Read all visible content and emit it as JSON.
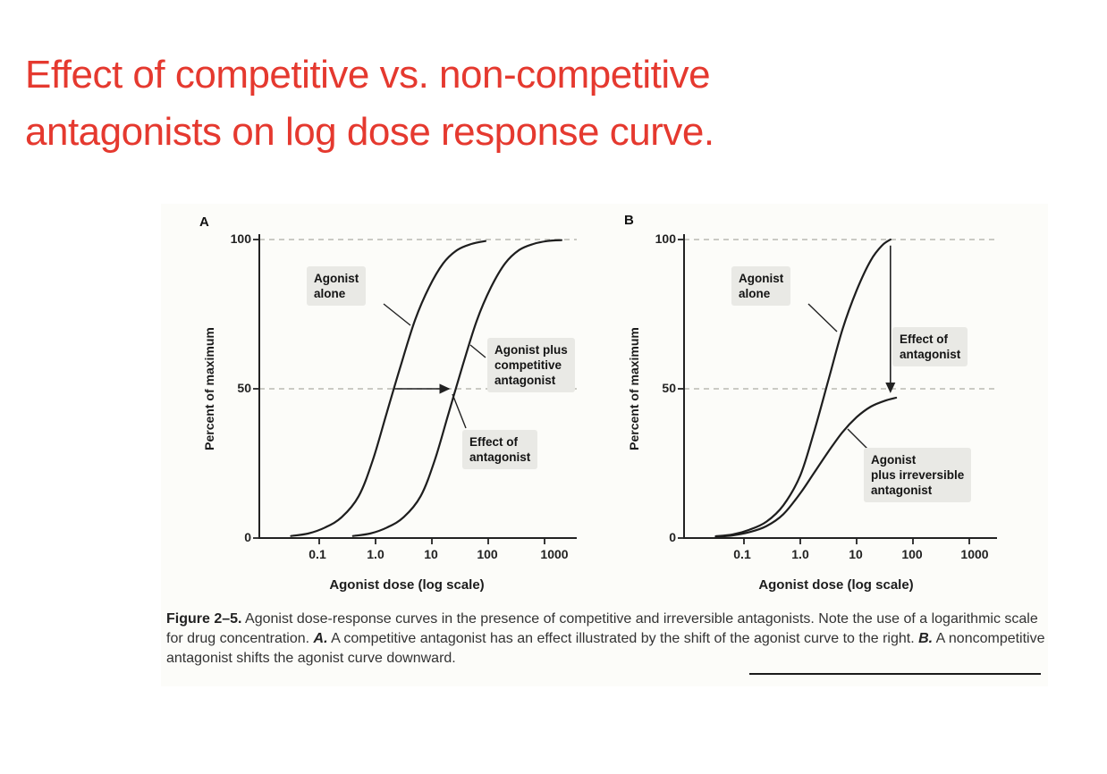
{
  "slide": {
    "title_line1": "Effect of competitive vs. non-competitive",
    "title_line2": "antagonists on log dose response curve.",
    "title_color": "#e5392f"
  },
  "figure": {
    "caption": {
      "lead": "Figure 2–5.",
      "part1": " Agonist dose-response curves in the presence of competitive and irreversible antagonists. Note the use of a logarithmic scale for drug concentration. ",
      "marker_a": "A.",
      "part2": " A competitive antagonist has an effect illustrated by the shift of the agonist curve to the right. ",
      "marker_b": "B.",
      "part3": " A noncompetitive antagonist shifts the agonist curve downward."
    }
  },
  "chart_data": [
    {
      "type": "line",
      "panel_label": "A",
      "xlabel": "Agonist dose (log scale)",
      "ylabel": "Percent of maximum",
      "x_scale": "log10",
      "x_ticks": [
        "0.1",
        "1.0",
        "10",
        "100",
        "1000"
      ],
      "y_ticks": [
        "100",
        "50",
        "0"
      ],
      "ylim": [
        0,
        100
      ],
      "gridlines_pct": [
        100,
        50
      ],
      "series": [
        {
          "name": "Agonist alone",
          "points": [
            [
              -1.5,
              0.7
            ],
            [
              -1.2,
              1.5
            ],
            [
              -0.9,
              3.5
            ],
            [
              -0.6,
              7
            ],
            [
              -0.3,
              14
            ],
            [
              -0.05,
              26
            ],
            [
              0.2,
              42
            ],
            [
              0.45,
              58
            ],
            [
              0.7,
              73
            ],
            [
              0.95,
              84
            ],
            [
              1.2,
              92
            ],
            [
              1.45,
              96.5
            ],
            [
              1.7,
              98.5
            ],
            [
              1.95,
              99.5
            ]
          ]
        },
        {
          "name": "Agonist plus competitive antagonist",
          "points": [
            [
              -0.4,
              0.7
            ],
            [
              -0.1,
              1.5
            ],
            [
              0.2,
              3.5
            ],
            [
              0.5,
              7
            ],
            [
              0.8,
              14
            ],
            [
              1.05,
              26
            ],
            [
              1.3,
              42
            ],
            [
              1.55,
              58
            ],
            [
              1.8,
              73
            ],
            [
              2.05,
              84
            ],
            [
              2.3,
              92
            ],
            [
              2.55,
              96.5
            ],
            [
              2.8,
              98.5
            ],
            [
              3.05,
              99.5
            ],
            [
              3.3,
              99.8
            ]
          ]
        }
      ],
      "annotations": {
        "agonist_alone": "Agonist\nalone",
        "plus_competitive": "Agonist plus\ncompetitive\nantagonist",
        "effect": "Effect of\nantagonist"
      },
      "arrow": {
        "orientation": "horizontal",
        "at_pct": 50,
        "from_log": 0.34,
        "to_log": 1.3,
        "meaning": "rightward shift caused by competitive antagonist"
      }
    },
    {
      "type": "line",
      "panel_label": "B",
      "xlabel": "Agonist dose (log scale)",
      "ylabel": "Percent of maximum",
      "x_scale": "log10",
      "x_ticks": [
        "0.1",
        "1.0",
        "10",
        "100",
        "1000"
      ],
      "y_ticks": [
        "100",
        "50",
        "0"
      ],
      "ylim": [
        0,
        100
      ],
      "gridlines_pct": [
        100,
        50
      ],
      "series": [
        {
          "name": "Agonist alone",
          "points": [
            [
              -1.5,
              0.6
            ],
            [
              -1.2,
              1.2
            ],
            [
              -0.9,
              2.8
            ],
            [
              -0.6,
              5.5
            ],
            [
              -0.3,
              11
            ],
            [
              0,
              21
            ],
            [
              0.25,
              36
            ],
            [
              0.5,
              53
            ],
            [
              0.75,
              70
            ],
            [
              1.0,
              83
            ],
            [
              1.25,
              93
            ],
            [
              1.45,
              98
            ],
            [
              1.6,
              100
            ]
          ]
        },
        {
          "name": "Agonist plus irreversible antagonist",
          "points": [
            [
              -1.5,
              0.4
            ],
            [
              -1.2,
              0.9
            ],
            [
              -0.9,
              2
            ],
            [
              -0.6,
              4
            ],
            [
              -0.3,
              8
            ],
            [
              0,
              15
            ],
            [
              0.25,
              22
            ],
            [
              0.5,
              29
            ],
            [
              0.75,
              35.5
            ],
            [
              1.0,
              40.5
            ],
            [
              1.25,
              44
            ],
            [
              1.5,
              46
            ],
            [
              1.7,
              47
            ]
          ]
        }
      ],
      "annotations": {
        "agonist_alone": "Agonist\nalone",
        "effect": "Effect of\nantagonist",
        "plus_irreversible": "Agonist\nplus irreversible\nantagonist"
      },
      "arrow": {
        "orientation": "vertical",
        "at_log": 1.6,
        "from_pct": 98,
        "to_pct": 49,
        "meaning": "downward shift caused by irreversible antagonist"
      }
    }
  ]
}
